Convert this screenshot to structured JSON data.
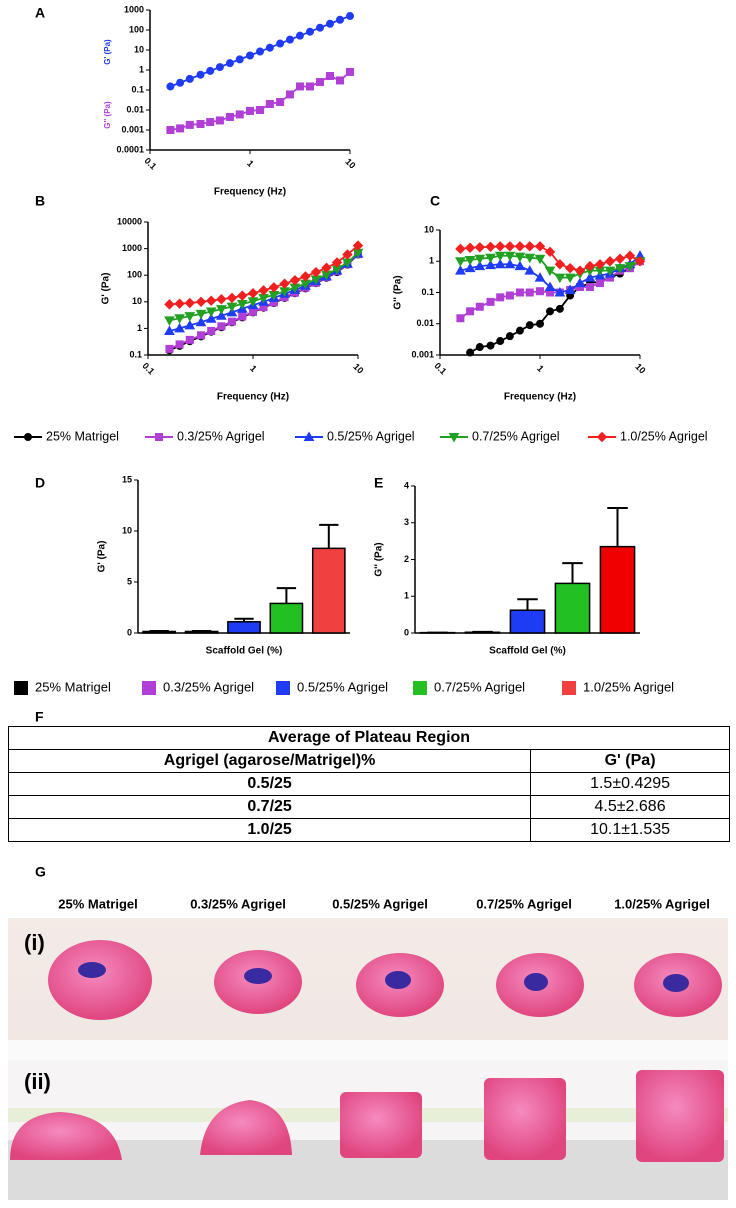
{
  "chart_data": [
    {
      "type": "line",
      "panel": "A",
      "xlabel": "Frequency (Hz)",
      "ylabels": [
        "G' (Pa)",
        "G'' (Pa)"
      ],
      "xscale": "log",
      "yscale": "log",
      "xlim": [
        0.1,
        10
      ],
      "xticks": [
        0.1,
        1,
        10
      ],
      "ylim": [
        0.0001,
        1000
      ],
      "yticks": [
        0.0001,
        0.001,
        0.01,
        0.1,
        1,
        10,
        100,
        1000
      ],
      "x": [
        0.16,
        0.2,
        0.25,
        0.32,
        0.4,
        0.5,
        0.63,
        0.79,
        1,
        1.26,
        1.58,
        2,
        2.51,
        3.16,
        3.98,
        5.01,
        6.31,
        7.94,
        10
      ],
      "series": [
        {
          "color": "#1f3cf5",
          "marker": "circle",
          "values": [
            0.15,
            0.23,
            0.36,
            0.58,
            0.9,
            1.4,
            2.2,
            3.4,
            5.3,
            8.4,
            13,
            21,
            33,
            52,
            82,
            130,
            205,
            325,
            500
          ]
        },
        {
          "color": "#b13fd6",
          "marker": "square",
          "values": [
            0.001,
            0.0012,
            0.0018,
            0.002,
            0.0025,
            0.003,
            0.0045,
            0.006,
            0.009,
            0.01,
            0.02,
            0.025,
            0.06,
            0.15,
            0.15,
            0.25,
            0.5,
            0.3,
            0.8
          ]
        }
      ]
    },
    {
      "type": "line",
      "panel": "B",
      "xlabel": "Frequency (Hz)",
      "ylabel": "G' (Pa)",
      "xscale": "log",
      "yscale": "log",
      "legend": "bottom",
      "xlim": [
        0.1,
        10
      ],
      "xticks": [
        0.1,
        1,
        10
      ],
      "ylim": [
        0.1,
        10000
      ],
      "yticks": [
        0.1,
        1,
        10,
        100,
        1000,
        10000
      ],
      "x": [
        0.16,
        0.2,
        0.25,
        0.32,
        0.4,
        0.5,
        0.63,
        0.79,
        1,
        1.26,
        1.58,
        2,
        2.51,
        3.16,
        3.98,
        5.01,
        6.31,
        7.94,
        10
      ],
      "series": [
        {
          "name": "25% Matrigel",
          "color": "#000000",
          "marker": "circle",
          "values": [
            0.15,
            0.22,
            0.33,
            0.5,
            0.75,
            1.1,
            1.7,
            2.6,
            4,
            6,
            9,
            14,
            21,
            32,
            50,
            80,
            130,
            250,
            600
          ]
        },
        {
          "name": "0.3/25% Agrigel",
          "color": "#b13fd6",
          "marker": "square",
          "values": [
            0.17,
            0.25,
            0.37,
            0.55,
            0.8,
            1.2,
            1.8,
            2.8,
            4.2,
            6.3,
            9.5,
            15,
            22,
            34,
            52,
            85,
            140,
            260,
            620
          ]
        },
        {
          "name": "0.5/25% Agrigel",
          "color": "#1f3cf5",
          "marker": "triangle",
          "values": [
            0.8,
            1,
            1.3,
            1.7,
            2.3,
            3,
            4,
            5.5,
            7.5,
            10,
            14,
            20,
            28,
            40,
            60,
            90,
            150,
            270,
            650
          ]
        },
        {
          "name": "0.7/25% Agrigel",
          "color": "#22a022",
          "marker": "triangle-down",
          "values": [
            2,
            2.4,
            2.9,
            3.5,
            4.3,
            5.3,
            6.6,
            8.3,
            10.5,
            14,
            18,
            25,
            34,
            48,
            70,
            105,
            170,
            300,
            700
          ]
        },
        {
          "name": "1.0/25% Agrigel",
          "color": "#f02020",
          "marker": "diamond",
          "values": [
            8,
            8.5,
            9,
            10,
            11,
            12.5,
            14,
            17,
            21,
            27,
            35,
            48,
            65,
            90,
            130,
            190,
            300,
            600,
            1300
          ]
        }
      ]
    },
    {
      "type": "line",
      "panel": "C",
      "xlabel": "Frequency (Hz)",
      "ylabel": "G'' (Pa)",
      "xscale": "log",
      "yscale": "log",
      "xlim": [
        0.1,
        10
      ],
      "xticks": [
        0.1,
        1,
        10
      ],
      "ylim": [
        0.001,
        10
      ],
      "yticks": [
        0.001,
        0.01,
        0.1,
        1,
        10
      ],
      "x": [
        0.16,
        0.2,
        0.25,
        0.32,
        0.4,
        0.5,
        0.63,
        0.79,
        1,
        1.26,
        1.58,
        2,
        2.51,
        3.16,
        3.98,
        5.01,
        6.31,
        7.94,
        10
      ],
      "series": [
        {
          "color": "#000000",
          "marker": "circle",
          "values": [
            null,
            0.0012,
            0.0018,
            0.002,
            0.0028,
            0.004,
            0.006,
            0.009,
            0.01,
            0.025,
            0.03,
            0.08,
            0.15,
            0.2,
            0.22,
            0.3,
            0.4,
            0.6,
            1.0
          ]
        },
        {
          "color": "#b13fd6",
          "marker": "square",
          "values": [
            0.015,
            0.025,
            0.035,
            0.05,
            0.07,
            0.08,
            0.1,
            0.1,
            0.11,
            0.1,
            0.1,
            0.12,
            0.15,
            0.15,
            0.2,
            0.3,
            0.5,
            0.6,
            1.0
          ]
        },
        {
          "color": "#1f3cf5",
          "marker": "triangle",
          "values": [
            0.5,
            0.6,
            0.7,
            0.75,
            0.8,
            0.8,
            0.7,
            0.5,
            0.3,
            0.15,
            0.1,
            0.12,
            0.2,
            0.3,
            0.35,
            0.4,
            0.6,
            0.8,
            1.5
          ]
        },
        {
          "color": "#22a022",
          "marker": "triangle-down",
          "values": [
            1,
            1.1,
            1.2,
            1.3,
            1.5,
            1.5,
            1.4,
            1.3,
            1.2,
            0.5,
            0.3,
            0.3,
            0.4,
            0.5,
            0.5,
            0.5,
            0.6,
            0.7,
            1.0
          ]
        },
        {
          "color": "#f02020",
          "marker": "diamond",
          "values": [
            2.5,
            2.7,
            2.8,
            2.9,
            3,
            3,
            3,
            3,
            3,
            2,
            0.8,
            0.6,
            0.5,
            0.7,
            0.8,
            1,
            1.2,
            1.5,
            1.0
          ]
        }
      ]
    },
    {
      "type": "bar",
      "panel": "D",
      "xlabel": "Scaffold Gel (%)",
      "ylabel": "G' (Pa)",
      "legend": "bottom",
      "categories": [
        "25% Matrigel",
        "0.3/25% Agrigel",
        "0.5/25% Agrigel",
        "0.7/25% Agrigel",
        "1.0/25% Agrigel"
      ],
      "colors": [
        "#000000",
        "#b13fd6",
        "#1f3cf5",
        "#22c022",
        "#f04040"
      ],
      "values": [
        0.15,
        0.15,
        1.1,
        2.9,
        8.3
      ],
      "errors": [
        0.05,
        0.05,
        0.3,
        1.5,
        2.3
      ],
      "ylim": [
        0,
        15
      ],
      "yticks": [
        0,
        5,
        10,
        15
      ]
    },
    {
      "type": "bar",
      "panel": "E",
      "xlabel": "Scaffold Gel (%)",
      "ylabel": "G'' (Pa)",
      "colors": [
        "#000000",
        "#b13fd6",
        "#1f3cf5",
        "#22c022",
        "#f00000"
      ],
      "values": [
        0.01,
        0.02,
        0.62,
        1.35,
        2.35
      ],
      "errors": [
        0,
        0.01,
        0.3,
        0.55,
        1.05
      ],
      "ylim": [
        0,
        4
      ],
      "yticks": [
        0,
        1,
        2,
        3,
        4
      ]
    }
  ],
  "table": {
    "panel": "F",
    "title": "Average of Plateau Region",
    "header": [
      "Agrigel (agarose/Matrigel)%",
      "G' (Pa)"
    ],
    "rows": [
      [
        "0.5/25",
        "1.5±0.4295"
      ],
      [
        "0.7/25",
        "4.5±2.686"
      ],
      [
        "1.0/25",
        "10.1±1.535"
      ]
    ]
  },
  "photo": {
    "panel": "G",
    "labels": [
      "25% Matrigel",
      "0.3/25% Agrigel",
      "0.5/25% Agrigel",
      "0.7/25% Agrigel",
      "1.0/25% Agrigel"
    ],
    "rows": [
      "(i)",
      "(ii)"
    ]
  }
}
